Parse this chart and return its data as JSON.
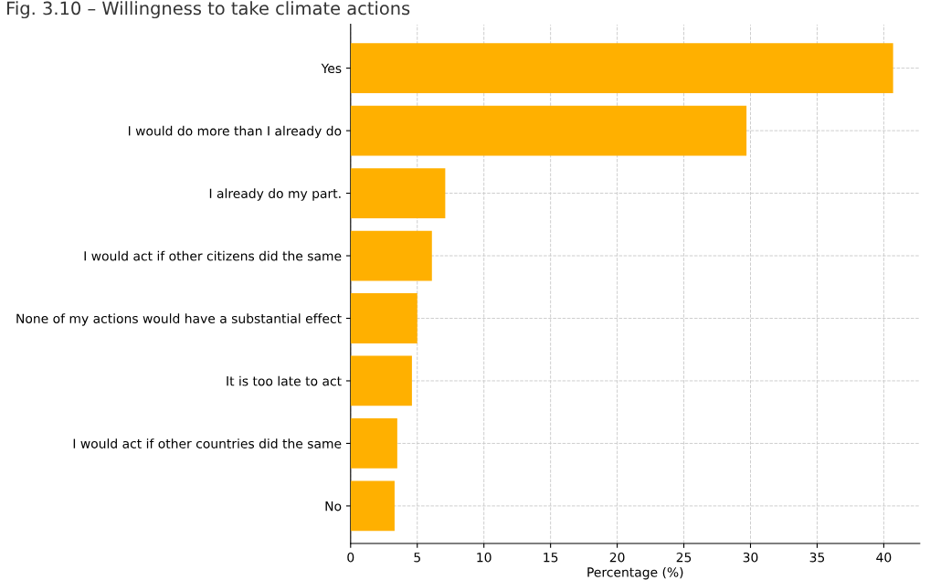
{
  "chart_data": {
    "type": "bar",
    "orientation": "horizontal",
    "title": "Fig. 3.10 – Willingness to take climate actions",
    "xlabel": "Percentage (%)",
    "categories": [
      "Yes",
      "I would do more than I already do",
      "I already do my part.",
      "I would act if other citizens did the same",
      "None of my actions would have a substantial effect",
      "It is too late to act",
      "I would act if other countries did the same",
      "No"
    ],
    "values": [
      40.7,
      29.7,
      7.1,
      6.1,
      5.0,
      4.6,
      3.5,
      3.3
    ],
    "color": "#ffb000",
    "xlim": [
      0,
      42.7
    ],
    "xticks": [
      0,
      5,
      10,
      15,
      20,
      25,
      30,
      35,
      40
    ],
    "grid": true
  }
}
